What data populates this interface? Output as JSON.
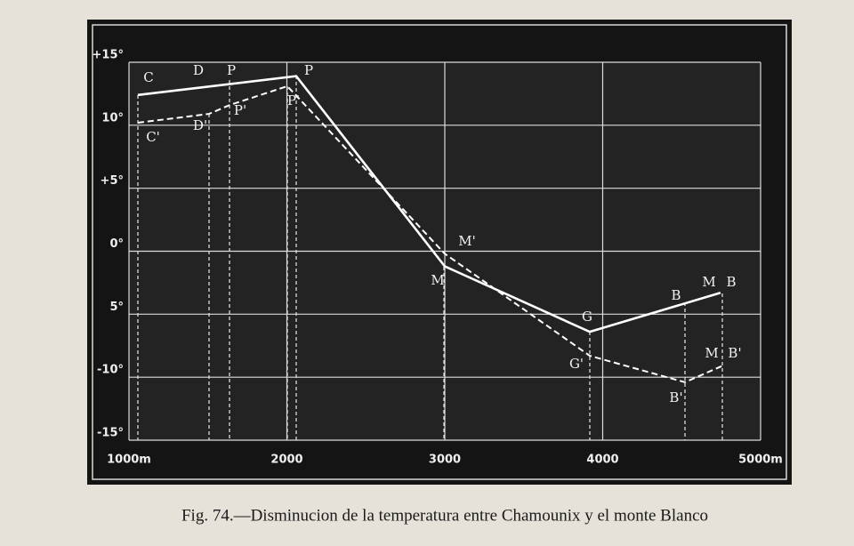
{
  "chart_data": {
    "type": "line",
    "title": "Fig. 74.—Disminucion de la temperatura entre Chamounix y el monte Blanco",
    "xlim": [
      1000,
      5000
    ],
    "xticks": [
      {
        "value": 1000,
        "label": "1000m"
      },
      2000,
      3000,
      4000,
      {
        "value": 5000,
        "label": "5000m"
      }
    ],
    "ylim": [
      -15,
      15
    ],
    "yticks": [
      {
        "value": 15,
        "label": "+15°"
      },
      {
        "value": 10,
        "label": "10°"
      },
      {
        "value": 5,
        "label": "+5°"
      },
      {
        "value": 0,
        "label": "0°"
      },
      {
        "value": -5,
        "label": "5°"
      },
      {
        "value": -10,
        "label": "-10°"
      },
      {
        "value": -15,
        "label": "-15°"
      }
    ],
    "grid": true,
    "series": [
      {
        "color": "#ffffff",
        "dash": false,
        "x": [
          1056,
          2059,
          3000,
          3918,
          4746
        ],
        "values": [
          12.4,
          13.9,
          -1.2,
          -6.4,
          -3.3
        ]
      },
      {
        "color": "#ffffff",
        "dash": true,
        "x": [
          1056,
          1507,
          1637,
          2003,
          3000,
          3918,
          4521,
          4758
        ],
        "values": [
          10.2,
          10.9,
          11.6,
          13.1,
          -0.2,
          -8.3,
          -10.4,
          -9.1
        ]
      }
    ],
    "annotations": [
      "C",
      "D",
      "P",
      "P",
      "C'",
      "D'",
      "P'",
      "P'",
      "M'",
      "M",
      "G",
      "G'",
      "B",
      "M",
      "B",
      "B'",
      "M",
      "B'"
    ]
  }
}
